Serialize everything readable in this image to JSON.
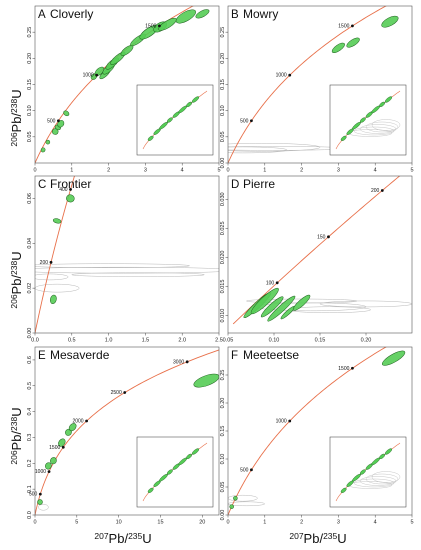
{
  "figure": {
    "xlabel": {
      "base1": "207",
      "base2": "Pb/",
      "base3": "235",
      "base4": "U"
    },
    "ylabel": {
      "base1": "206",
      "base2": "Pb/",
      "base3": "238",
      "base4": "U"
    }
  },
  "colors": {
    "curve": "#e8704a",
    "ellipse_fill": "#55cc55",
    "ellipse_stroke": "#1f5f1f",
    "grey_ellipse": "#b8b8b8",
    "frame": "#555555"
  },
  "chart_data": [
    {
      "type": "scatter",
      "letter": "A",
      "title": "Cloverly",
      "xlim": [
        0,
        5
      ],
      "ylim": [
        0,
        0.3
      ],
      "xticks": [
        "0",
        "1",
        "2",
        "3",
        "4",
        "5"
      ],
      "yticks": [
        "0.05",
        "0.10",
        "0.15",
        "0.20",
        "0.25"
      ],
      "concordia_labels": [
        "500",
        "1000",
        "1500"
      ],
      "inset": true
    },
    {
      "type": "scatter",
      "letter": "B",
      "title": "Mowry",
      "xlim": [
        0,
        5
      ],
      "ylim": [
        0,
        0.3
      ],
      "xticks": [
        "0",
        "1",
        "2",
        "3",
        "4",
        "5"
      ],
      "yticks": [
        "0.00",
        "0.05",
        "0.10",
        "0.15",
        "0.20",
        "0.25"
      ],
      "concordia_labels": [
        "500",
        "1000",
        "1500"
      ],
      "inset": true
    },
    {
      "type": "scatter",
      "letter": "C",
      "title": "Frontier",
      "xlim": [
        0,
        2.5
      ],
      "ylim": [
        0,
        0.07
      ],
      "xticks": [
        "0.0",
        "0.5",
        "1.0",
        "1.5",
        "2.0",
        "2.5"
      ],
      "yticks": [
        "0.00",
        "0.02",
        "0.04",
        "0.06"
      ],
      "concordia_labels": [
        "200",
        "400"
      ],
      "inset": false
    },
    {
      "type": "scatter",
      "letter": "D",
      "title": "Pierre",
      "xlim": [
        0.05,
        0.25
      ],
      "ylim": [
        0.007,
        0.034
      ],
      "xticks": [
        "0.05",
        "0.10",
        "0.15",
        "0.20"
      ],
      "yticks": [
        "0.010",
        "0.015",
        "0.020",
        "0.025",
        "0.030"
      ],
      "concordia_labels": [
        "100",
        "150",
        "200"
      ],
      "inset": false
    },
    {
      "type": "scatter",
      "letter": "E",
      "title": "Mesaverde",
      "xlim": [
        0,
        22
      ],
      "ylim": [
        0,
        0.65
      ],
      "xticks": [
        "0",
        "5",
        "10",
        "15",
        "20"
      ],
      "yticks": [
        "0.0",
        "0.1",
        "0.2",
        "0.3",
        "0.4",
        "0.5",
        "0.6"
      ],
      "concordia_labels": [
        "500",
        "1000",
        "1500",
        "2000",
        "2500",
        "3000"
      ],
      "inset": true
    },
    {
      "type": "scatter",
      "letter": "F",
      "title": "Meeteetse",
      "xlim": [
        0,
        5
      ],
      "ylim": [
        0,
        0.3
      ],
      "xticks": [
        "0",
        "1",
        "2",
        "3",
        "4",
        "5"
      ],
      "yticks": [
        "0.00",
        "0.05",
        "0.10",
        "0.15",
        "0.20",
        "0.25"
      ],
      "concordia_labels": [
        "500",
        "1000",
        "1500"
      ],
      "inset": true
    }
  ]
}
